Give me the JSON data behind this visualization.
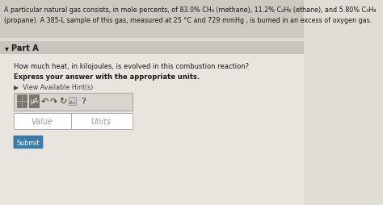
{
  "header_bg": "#ccc9c0",
  "header_text_line1": "A particular natural gas consists, in mole percents, of 83.0% CH₄ (methane), 11.2% C₂H₆ (ethane), and 5.80% C₃H₈",
  "header_text_line2": "(propane). A 385-L sample of this gas, measured at 25 °C and 729 mmHg , is burned in an excess of oxygen gas.",
  "part_label": "Part A",
  "question_line1": "How much heat, in kilojoules, is evolved in this combustion reaction?",
  "question_line2": "Express your answer with the appropriate units.",
  "hint_text": "▶  View Available Hint(s)",
  "value_placeholder": "Value",
  "units_placeholder": "Units",
  "submit_text": "Submit",
  "submit_bg": "#3a7ca5",
  "submit_text_color": "#ffffff",
  "toolbar_outer_bg": "#d8d5ce",
  "toolbar_icon_bg": "#777770",
  "input_bg": "#ffffff",
  "input_border": "#aaaaaa",
  "body_bg": "#e8e5de",
  "part_bar_bg": "#c8c5be",
  "overall_bg": "#e0ddd6",
  "text_dark": "#1a1a1a",
  "text_hint": "#444444"
}
